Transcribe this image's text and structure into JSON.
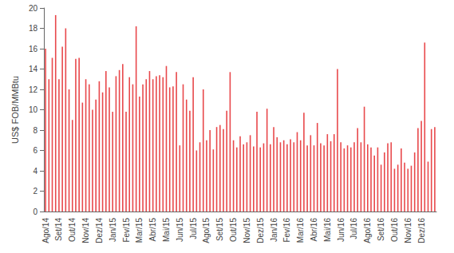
{
  "chart_data": {
    "type": "bar",
    "y_label": "US$ FOB/MMBtu",
    "categories": [
      "Ago/14",
      null,
      null,
      null,
      "Set/14",
      null,
      null,
      null,
      "Out/14",
      null,
      null,
      null,
      "Nov/14",
      null,
      null,
      null,
      "Dez/14",
      null,
      null,
      null,
      "Jan/15",
      null,
      null,
      null,
      "Fev/15",
      null,
      null,
      null,
      "Mar/15",
      null,
      null,
      null,
      "Abr/15",
      null,
      null,
      null,
      "Mai/15",
      null,
      null,
      null,
      "Jun/15",
      null,
      null,
      null,
      "Jul/15",
      null,
      null,
      null,
      "Ago/15",
      null,
      null,
      null,
      "Set/15",
      null,
      null,
      null,
      "Out/15",
      null,
      null,
      null,
      "Nov/15",
      null,
      null,
      null,
      "Dez/15",
      null,
      null,
      null,
      "Jan/16",
      null,
      null,
      null,
      "Fev/16",
      null,
      null,
      null,
      "Mar/16",
      null,
      null,
      null,
      "Abr/16",
      null,
      null,
      null,
      "Mai/16",
      null,
      null,
      null,
      "Jun/16",
      null,
      null,
      null,
      "Jul/16",
      null,
      null,
      null,
      "Ago/16",
      null,
      null,
      null,
      "Set/16",
      null,
      null,
      null,
      "Out/16",
      null,
      null,
      null,
      "Nov/16",
      null,
      null,
      null,
      "Dez/16",
      null,
      null,
      null,
      null
    ],
    "values": [
      16,
      13,
      15.1,
      19.3,
      13,
      16.2,
      18,
      12,
      9,
      15,
      15.1,
      10.7,
      13,
      12.5,
      10,
      11,
      12.8,
      11.7,
      13.8,
      12.2,
      9.8,
      13.3,
      13.9,
      14.5,
      9.8,
      13.2,
      12.5,
      18.2,
      11.3,
      12.5,
      13,
      13.8,
      13,
      13.3,
      13.4,
      13.2,
      14.3,
      12.2,
      12.3,
      13.7,
      6.5,
      12.5,
      11,
      9.9,
      13.2,
      6,
      6.8,
      12,
      7,
      8,
      6.1,
      8.3,
      8.5,
      8.1,
      9.9,
      13.7,
      7,
      6.3,
      7.4,
      6.6,
      6.8,
      7.5,
      6.4,
      9.8,
      6.3,
      6.7,
      10.1,
      6.6,
      8.3,
      7.3,
      6.8,
      7,
      6.6,
      7.1,
      6.8,
      7.8,
      7,
      9.7,
      6.5,
      7.5,
      6.5,
      8.7,
      6.7,
      6.5,
      7.6,
      6.9,
      7.6,
      14,
      6.8,
      6.2,
      6.5,
      6.3,
      6.8,
      8.2,
      6.8,
      10.3,
      6.6,
      6.3,
      5.5,
      6.3,
      4.6,
      5.8,
      6.7,
      6.8,
      4.2,
      4.6,
      6.2,
      4.8,
      4.2,
      4.5,
      5.8,
      8.2,
      8.9,
      16.6,
      4.9,
      8.1,
      8.3
    ],
    "color": "#e8484b",
    "ylim": [
      0,
      20
    ],
    "yticks": [
      0,
      2,
      4,
      6,
      8,
      10,
      12,
      14,
      16,
      18,
      20
    ],
    "grid": false
  }
}
